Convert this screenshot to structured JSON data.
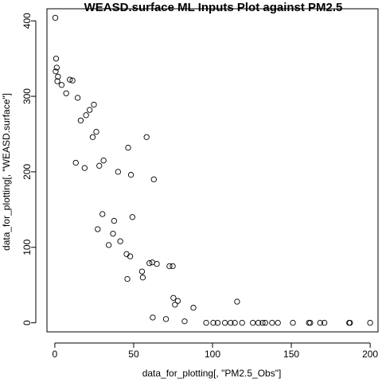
{
  "chart_data": {
    "type": "scatter",
    "title": "WEASD.surface ML Inputs Plot against PM2.5",
    "xlabel": "data_for_plotting[, \"PM2.5_Obs\"]",
    "ylabel": "data_for_plotting[, \"WEASD.surface\"]",
    "xlim": [
      -5,
      205
    ],
    "ylim": [
      -12,
      416
    ],
    "xticks": [
      0,
      50,
      100,
      150,
      200
    ],
    "yticks": [
      0,
      100,
      200,
      300,
      400
    ],
    "grid": false,
    "marker": "open-circle",
    "colors": {
      "points": "#000000",
      "axes": "#000000",
      "background": "#ffffff"
    },
    "points": [
      [
        0.3,
        404
      ],
      [
        0.8,
        350
      ],
      [
        1.2,
        338
      ],
      [
        0.5,
        333
      ],
      [
        2.0,
        326
      ],
      [
        1.6,
        320
      ],
      [
        9.5,
        322
      ],
      [
        11.2,
        321
      ],
      [
        4.3,
        315
      ],
      [
        7.2,
        304
      ],
      [
        14.5,
        298
      ],
      [
        24.8,
        289
      ],
      [
        22.1,
        282
      ],
      [
        19.8,
        275
      ],
      [
        16.4,
        268
      ],
      [
        26.3,
        253
      ],
      [
        24.0,
        246
      ],
      [
        58.2,
        246
      ],
      [
        46.5,
        232
      ],
      [
        30.9,
        215
      ],
      [
        28.2,
        208
      ],
      [
        40.1,
        200
      ],
      [
        48.3,
        196
      ],
      [
        62.8,
        190
      ],
      [
        18.9,
        205
      ],
      [
        13.3,
        212
      ],
      [
        30.2,
        144
      ],
      [
        37.6,
        135
      ],
      [
        49.2,
        140
      ],
      [
        41.5,
        108
      ],
      [
        34.2,
        103
      ],
      [
        27.2,
        124
      ],
      [
        36.9,
        118
      ],
      [
        60.0,
        79
      ],
      [
        61.8,
        80
      ],
      [
        64.7,
        78
      ],
      [
        72.7,
        75
      ],
      [
        74.8,
        75
      ],
      [
        55.3,
        68
      ],
      [
        45.5,
        91
      ],
      [
        47.8,
        88
      ],
      [
        78.0,
        29
      ],
      [
        76.2,
        24
      ],
      [
        87.9,
        20
      ],
      [
        115.6,
        28
      ],
      [
        75.2,
        33
      ],
      [
        55.8,
        60
      ],
      [
        46.0,
        58
      ],
      [
        62.1,
        7
      ],
      [
        70.5,
        5
      ],
      [
        82.3,
        2
      ],
      [
        96.0,
        0
      ],
      [
        100.5,
        0
      ],
      [
        103.3,
        0
      ],
      [
        107.9,
        0
      ],
      [
        111.5,
        0
      ],
      [
        114.2,
        0
      ],
      [
        118.8,
        0
      ],
      [
        125.6,
        0
      ],
      [
        129.1,
        0
      ],
      [
        131.8,
        0
      ],
      [
        133.5,
        0
      ],
      [
        137.8,
        0
      ],
      [
        141.5,
        0
      ],
      [
        151.0,
        0
      ],
      [
        161.2,
        0
      ],
      [
        162.0,
        0
      ],
      [
        168.3,
        0
      ],
      [
        171.0,
        0
      ],
      [
        186.7,
        0
      ],
      [
        187.2,
        0
      ],
      [
        200.0,
        0
      ]
    ]
  }
}
